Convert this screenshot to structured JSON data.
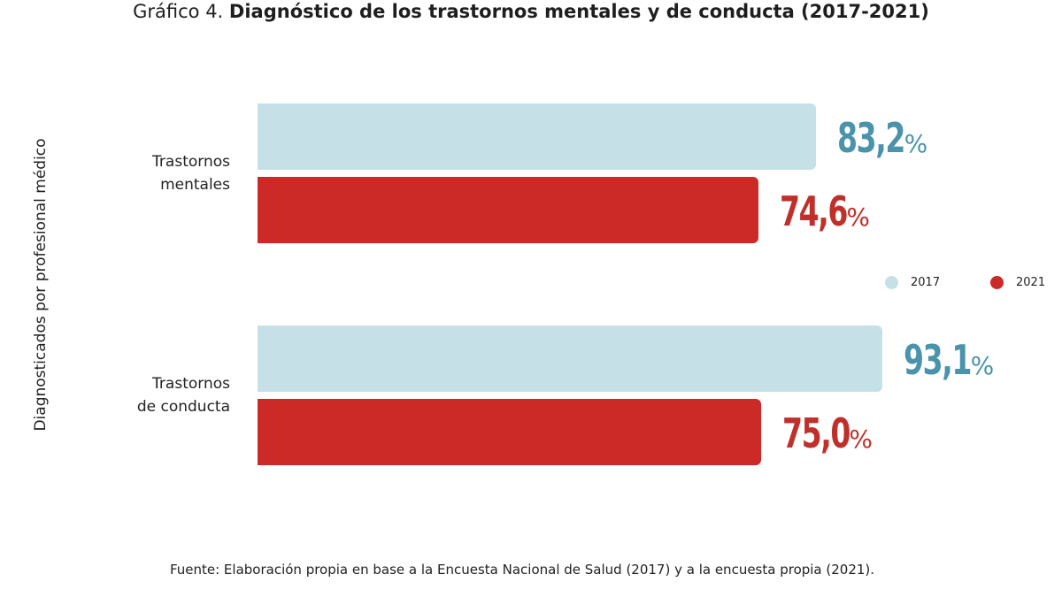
{
  "title": {
    "prefix": "Gráfico 4.",
    "main": "Diagnóstico de los trastornos mentales y de conducta (2017-2021)"
  },
  "source": "Fuente: Elaboración propia en base a la Encuesta Nacional de Salud (2017) y a la encuesta propia (2021).",
  "chart_data": {
    "type": "bar",
    "orientation": "horizontal",
    "title": "Gráfico 4. Diagnóstico de los trastornos mentales y de conducta (2017-2021)",
    "xlabel": "",
    "ylabel": "Diagnosticados por profesional médico",
    "categories": [
      "Trastornos mentales",
      "Trastornos de conducta"
    ],
    "category_lines": [
      [
        "Trastornos",
        "mentales"
      ],
      [
        "Trastornos",
        "de conducta"
      ]
    ],
    "series": [
      {
        "name": "2017",
        "color": "#c6e0e8",
        "label_color": "#4a93ab",
        "values": [
          83.2,
          93.1
        ],
        "labels": [
          "83,2",
          "93,1"
        ]
      },
      {
        "name": "2021",
        "color": "#cc2a27",
        "label_color": "#c0302b",
        "values": [
          74.6,
          75.0
        ],
        "labels": [
          "74,6",
          "75,0"
        ]
      }
    ],
    "value_suffix": "%",
    "xlim": [
      0,
      100
    ],
    "grid": false,
    "legend_position": "right"
  }
}
